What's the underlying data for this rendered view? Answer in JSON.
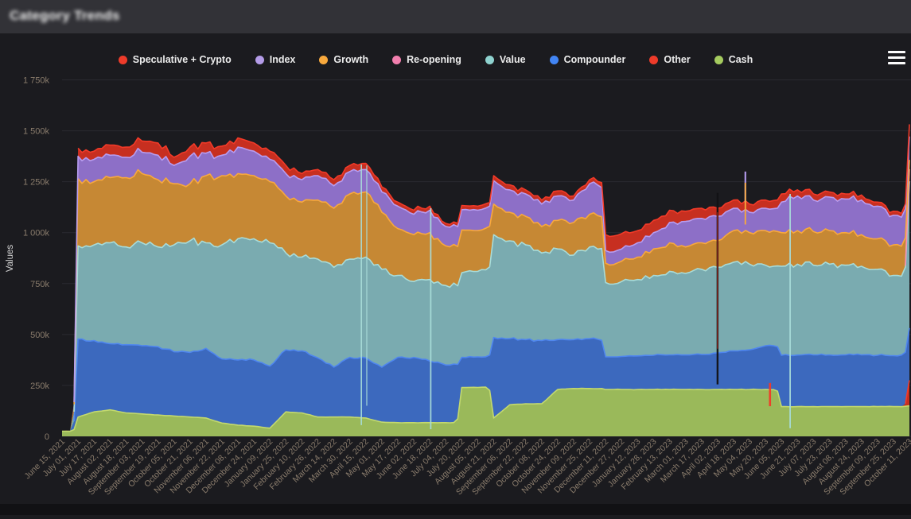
{
  "header": {
    "title": "Category Trends"
  },
  "menu_icon": "hamburger-icon",
  "colors": {
    "page_bg": "#1b1b1f",
    "header_bg": "#323237",
    "grid": "#2b2b30",
    "tick_text": "#8a7c6c",
    "axis_label_text": "#d6d6d6",
    "legend_text": "#ececec",
    "bottom_strip": "#111114"
  },
  "legend": {
    "position": "top",
    "items": [
      {
        "label": "Speculative + Crypto",
        "color": "#ee3b2a"
      },
      {
        "label": "Index",
        "color": "#b49ce8"
      },
      {
        "label": "Growth",
        "color": "#f8a93d"
      },
      {
        "label": "Re-opening",
        "color": "#f27fae"
      },
      {
        "label": "Value",
        "color": "#8fd2cf"
      },
      {
        "label": "Compounder",
        "color": "#4285f4"
      },
      {
        "label": "Other",
        "color": "#ee3b2a"
      },
      {
        "label": "Cash",
        "color": "#a5cb5f"
      }
    ]
  },
  "chart_data": {
    "type": "area",
    "stacked": true,
    "title": "Category Trends",
    "xlabel": "",
    "ylabel": "Values",
    "value_unit": "k (thousands)",
    "ylim": [
      0,
      1750
    ],
    "y_ticks": [
      {
        "k": 0,
        "label": "0"
      },
      {
        "k": 250,
        "label": "250k"
      },
      {
        "k": 500,
        "label": "500k"
      },
      {
        "k": 750,
        "label": "750k"
      },
      {
        "k": 1000,
        "label": "1 000k"
      },
      {
        "k": 1250,
        "label": "1 250k"
      },
      {
        "k": 1500,
        "label": "1 500k"
      },
      {
        "k": 1750,
        "label": "1 750k"
      }
    ],
    "grid": "horizontal",
    "legend_position": "top",
    "categories": [
      "June 15, 2021",
      "July 01, 2021",
      "July 17, 2021",
      "August 02, 2021",
      "August 18, 2021",
      "September 03, 2021",
      "September 19, 2021",
      "October 05, 2021",
      "October 21, 2021",
      "November 06, 2021",
      "November 22, 2021",
      "December 08, 2021",
      "December 24, 2021",
      "January 09, 2022",
      "January 25, 2022",
      "February 10, 2022",
      "February 26, 2022",
      "March 14, 2022",
      "March 30, 2022",
      "April 15, 2022",
      "May 01, 2022",
      "May 17, 2022",
      "June 02, 2022",
      "June 18, 2022",
      "July 04, 2022",
      "July 20, 2022",
      "August 05, 2022",
      "August 21, 2022",
      "September 06, 2022",
      "September 22, 2022",
      "October 08, 2022",
      "October 24, 2022",
      "November 09, 2022",
      "November 25, 2022",
      "December 11, 2022",
      "December 27, 2022",
      "January 12, 2023",
      "January 28, 2023",
      "February 13, 2023",
      "March 01, 2023",
      "March 17, 2023",
      "April 02, 2023",
      "April 18, 2023",
      "May 04, 2023",
      "May 20, 2023",
      "June 05, 2023",
      "June 21, 2023",
      "July 07, 2023",
      "July 23, 2023",
      "August 08, 2023",
      "August 24, 2023",
      "September 09, 2023",
      "September 25, 2023",
      "October 11, 2023"
    ],
    "series": [
      {
        "name": "Cash",
        "fill": "#9ab95a",
        "line": "#c3d96e",
        "jitter": 0.25,
        "values": [
          25,
          95,
          120,
          130,
          115,
          110,
          105,
          100,
          95,
          90,
          65,
          55,
          50,
          40,
          120,
          115,
          95,
          95,
          95,
          90,
          70,
          67,
          67,
          67,
          67,
          240,
          240,
          90,
          155,
          160,
          160,
          230,
          235,
          235,
          230,
          230,
          230,
          230,
          230,
          230,
          230,
          230,
          230,
          230,
          230,
          146,
          146,
          146,
          146,
          146,
          146,
          146,
          146,
          150
        ]
      },
      {
        "name": "Other",
        "fill": "#c72f20",
        "line": "#f23a28",
        "jitter": 0.15,
        "values": [
          0,
          0,
          0,
          0,
          0,
          0,
          0,
          0,
          0,
          0,
          0,
          0,
          0,
          0,
          0,
          0,
          0,
          0,
          0,
          0,
          0,
          0,
          0,
          0,
          0,
          0,
          0,
          0,
          0,
          0,
          0,
          0,
          0,
          0,
          0,
          0,
          0,
          0,
          0,
          0,
          0,
          0,
          0,
          0,
          0,
          0,
          0,
          0,
          0,
          0,
          0,
          0,
          0,
          125
        ]
      },
      {
        "name": "Compounder",
        "fill": "#3c69be",
        "line": "#4f86ef",
        "jitter": 0.55,
        "values": [
          0,
          383,
          350,
          325,
          335,
          335,
          335,
          315,
          317,
          342,
          315,
          320,
          325,
          305,
          305,
          305,
          290,
          245,
          293,
          295,
          270,
          321,
          321,
          303,
          283,
          148,
          150,
          395,
          325,
          315,
          310,
          245,
          240,
          245,
          160,
          162,
          165,
          168,
          170,
          170,
          172,
          180,
          190,
          195,
          215,
          252,
          253,
          254,
          254,
          254,
          254,
          252,
          250,
          257
        ]
      },
      {
        "name": "Value",
        "fill": "#7aabb0",
        "line": "#a8dcd9",
        "jitter": 1.0,
        "values": [
          0,
          457,
          470,
          495,
          480,
          505,
          490,
          525,
          548,
          518,
          560,
          595,
          595,
          605,
          475,
          460,
          485,
          490,
          482,
          495,
          480,
          402,
          372,
          400,
          390,
          415,
          420,
          505,
          480,
          465,
          430,
          445,
          415,
          450,
          365,
          368,
          375,
          392,
          410,
          400,
          418,
          420,
          435,
          420,
          395,
          437,
          446,
          440,
          445,
          440,
          435,
          422,
          394,
          720
        ]
      },
      {
        "name": "Re-opening",
        "fill": "#d96f9f",
        "line": "#f690b5",
        "jitter": 0.2,
        "values": [
          0,
          0,
          0,
          0,
          0,
          0,
          0,
          0,
          0,
          0,
          0,
          0,
          0,
          0,
          0,
          0,
          0,
          0,
          0,
          0,
          0,
          0,
          0,
          0,
          0,
          0,
          0,
          0,
          0,
          0,
          0,
          0,
          0,
          0,
          0,
          0,
          0,
          0,
          0,
          0,
          0,
          0,
          0,
          0,
          0,
          0,
          0,
          0,
          0,
          0,
          0,
          0,
          0,
          60
        ]
      },
      {
        "name": "Growth",
        "fill": "#c68834",
        "line": "#f8a83d",
        "jitter": 1.0,
        "values": [
          0,
          330,
          310,
          320,
          340,
          340,
          330,
          300,
          280,
          330,
          340,
          320,
          310,
          300,
          280,
          270,
          290,
          290,
          320,
          320,
          280,
          230,
          230,
          230,
          195,
          210,
          200,
          150,
          140,
          140,
          130,
          140,
          160,
          160,
          95,
          100,
          110,
          130,
          140,
          130,
          130,
          130,
          155,
          155,
          170,
          165,
          165,
          165,
          165,
          160,
          155,
          150,
          150,
          45
        ]
      },
      {
        "name": "Index",
        "fill": "#8d6fc7",
        "line": "#b79df0",
        "jitter": 1.0,
        "values": [
          0,
          110,
          110,
          110,
          100,
          105,
          120,
          90,
          135,
          110,
          100,
          130,
          120,
          110,
          110,
          110,
          120,
          110,
          110,
          110,
          100,
          110,
          100,
          110,
          95,
          100,
          100,
          115,
          110,
          110,
          110,
          120,
          110,
          150,
          62,
          60,
          70,
          80,
          100,
          125,
          120,
          120,
          110,
          100,
          110,
          150,
          170,
          155,
          165,
          165,
          170,
          160,
          145,
          115
        ]
      },
      {
        "name": "Speculative + Crypto",
        "fill": "#c72f20",
        "line": "#f23a28",
        "jitter": 0.9,
        "values": [
          0,
          40,
          40,
          50,
          50,
          55,
          60,
          40,
          45,
          50,
          45,
          45,
          40,
          40,
          40,
          30,
          30,
          30,
          30,
          30,
          25,
          20,
          20,
          20,
          15,
          20,
          20,
          25,
          25,
          20,
          20,
          25,
          20,
          20,
          78,
          75,
          60,
          60,
          60,
          50,
          50,
          40,
          40,
          40,
          40,
          40,
          30,
          30,
          25,
          25,
          25,
          20,
          20,
          60
        ]
      }
    ],
    "step_intervals": [
      0,
      24,
      26,
      33,
      44,
      52
    ],
    "anomalies": [
      {
        "x_index": 18.72,
        "color": "#a8dcd9",
        "from_k": 1335,
        "to_k": 55,
        "width": 1.6
      },
      {
        "x_index": 19.06,
        "color": "#a8dcd9",
        "from_k": 1330,
        "to_k": 150,
        "width": 1.2
      },
      {
        "x_index": 23.06,
        "color": "#a8dcd9",
        "from_k": 1120,
        "to_k": 35,
        "width": 1.8
      },
      {
        "x_index": 41.0,
        "color": "#121215",
        "from_k": 1195,
        "to_k": 255,
        "width": 2.4
      },
      {
        "x_index": 41.0,
        "color": "#c72f20",
        "from_k": 1100,
        "to_k": 430,
        "width": 0.9
      },
      {
        "x_index": 42.74,
        "color": "#b79df0",
        "from_k": 1300,
        "to_k": 1150,
        "width": 2.2
      },
      {
        "x_index": 42.74,
        "color": "#f8a83d",
        "from_k": 1245,
        "to_k": 1040,
        "width": 2.0
      },
      {
        "x_index": 44.28,
        "color": "#f23a28",
        "from_k": 262,
        "to_k": 148,
        "width": 2.6
      },
      {
        "x_index": 45.54,
        "color": "#a8dcd9",
        "from_k": 1190,
        "to_k": 40,
        "width": 1.8
      }
    ]
  }
}
